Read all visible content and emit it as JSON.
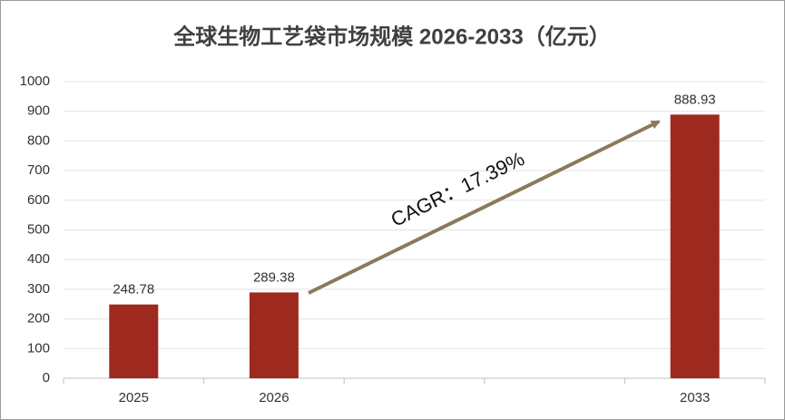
{
  "chart_data": {
    "type": "bar",
    "title": "全球生物工艺袋市场规模 2026-2033（亿元）",
    "categories": [
      "2025",
      "2026",
      null,
      null,
      "2033"
    ],
    "values": [
      248.78,
      289.38,
      null,
      null,
      888.93
    ],
    "color": "#9e2a1f",
    "ylim": [
      0,
      1000
    ],
    "yticks": [
      0,
      100,
      200,
      300,
      400,
      500,
      600,
      700,
      800,
      900,
      1000
    ],
    "grid": true,
    "annotation": "CAGR：17.39%"
  }
}
